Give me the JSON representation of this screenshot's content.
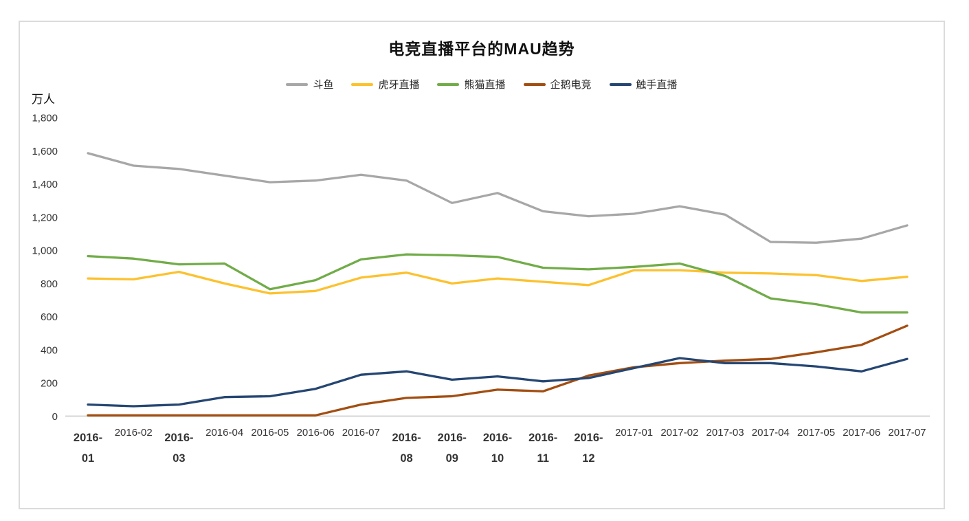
{
  "title": "电竞直播平台的MAU趋势",
  "y_unit_label": "万人",
  "chart_data": {
    "type": "line",
    "title": "电竞直播平台的MAU趋势",
    "xlabel": "",
    "ylabel": "万人",
    "ylim": [
      0,
      1800
    ],
    "ytick_step": 200,
    "ytick_labels": [
      "0",
      "200",
      "400",
      "600",
      "800",
      "1,000",
      "1,200",
      "1,400",
      "1,600",
      "1,800"
    ],
    "grid": false,
    "legend_position": "top",
    "background_color": "#ffffff",
    "frame_border_color": "#dbdbdb",
    "axis_line_color": "#d6d6d6",
    "categories": [
      "2016-01",
      "2016-02",
      "2016-03",
      "2016-04",
      "2016-05",
      "2016-06",
      "2016-07",
      "2016-08",
      "2016-09",
      "2016-10",
      "2016-11",
      "2016-12",
      "2017-01",
      "2017-02",
      "2017-03",
      "2017-04",
      "2017-05",
      "2017-06",
      "2017-07"
    ],
    "wrapped_categories": [
      "2016-01",
      "2016-03",
      "2016-08",
      "2016-09",
      "2016-10",
      "2016-11",
      "2016-12"
    ],
    "series": [
      {
        "name": "斗鱼",
        "color": "#a7a7a7",
        "values": [
          1585,
          1510,
          1490,
          1450,
          1410,
          1420,
          1455,
          1420,
          1285,
          1345,
          1235,
          1205,
          1220,
          1265,
          1215,
          1050,
          1045,
          1070,
          1150
        ]
      },
      {
        "name": "虎牙直播",
        "color": "#fcc12e",
        "values": [
          830,
          825,
          870,
          800,
          740,
          755,
          835,
          865,
          800,
          830,
          810,
          790,
          880,
          880,
          865,
          860,
          850,
          815,
          840
        ]
      },
      {
        "name": "熊猫直播",
        "color": "#71ac48",
        "values": [
          965,
          950,
          915,
          920,
          765,
          820,
          945,
          975,
          970,
          960,
          895,
          885,
          900,
          920,
          845,
          710,
          675,
          625,
          625
        ]
      },
      {
        "name": "企鹅电竞",
        "color": "#a24e12",
        "values": [
          5,
          5,
          5,
          5,
          5,
          5,
          70,
          110,
          120,
          160,
          150,
          245,
          295,
          320,
          335,
          345,
          385,
          430,
          545
        ]
      },
      {
        "name": "触手直播",
        "color": "#254672",
        "values": [
          70,
          60,
          70,
          115,
          120,
          165,
          250,
          270,
          220,
          240,
          210,
          230,
          290,
          350,
          320,
          320,
          300,
          270,
          345
        ]
      }
    ]
  }
}
